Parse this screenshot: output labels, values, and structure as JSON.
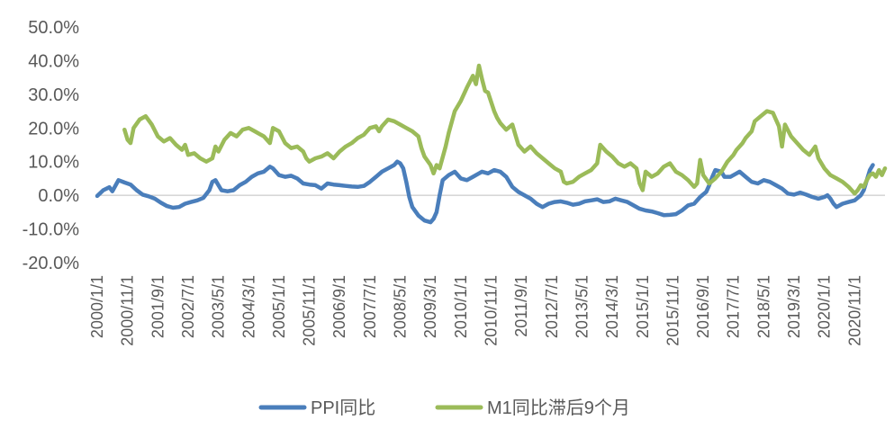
{
  "chart_data": {
    "type": "line",
    "title": "",
    "xlabel": "",
    "ylabel": "",
    "ylim": [
      -20,
      50
    ],
    "yticks": [
      "50.0%",
      "40.0%",
      "30.0%",
      "20.0%",
      "10.0%",
      "0.0%",
      "-10.0%",
      "-20.0%"
    ],
    "ytick_values": [
      50,
      40,
      30,
      20,
      10,
      0,
      -10,
      -20
    ],
    "x_categories": [
      "2000/1/1",
      "2000/11/1",
      "2001/9/1",
      "2002/7/1",
      "2003/5/1",
      "2004/3/1",
      "2005/1/1",
      "2005/11/1",
      "2006/9/1",
      "2007/7/1",
      "2008/5/1",
      "2009/3/1",
      "2010/1/1",
      "2010/11/1",
      "2011/9/1",
      "2012/7/1",
      "2013/5/1",
      "2014/3/1",
      "2015/1/1",
      "2015/11/1",
      "2016/9/1",
      "2017/7/1",
      "2018/5/1",
      "2019/3/1",
      "2020/1/1",
      "2020/11/1"
    ],
    "grid": false,
    "legend_position": "bottom",
    "series": [
      {
        "name": "PPI同比",
        "color": "#4A7EBB",
        "values": [
          [
            0,
            -0.2
          ],
          [
            2,
            1.5
          ],
          [
            4,
            2.4
          ],
          [
            5,
            1.2
          ],
          [
            7,
            4.5
          ],
          [
            9,
            3.8
          ],
          [
            11,
            3.2
          ],
          [
            13,
            1.5
          ],
          [
            15,
            0.2
          ],
          [
            17,
            -0.3
          ],
          [
            19,
            -1.0
          ],
          [
            21,
            -2.2
          ],
          [
            23,
            -3.2
          ],
          [
            25,
            -3.7
          ],
          [
            27,
            -3.5
          ],
          [
            29,
            -2.5
          ],
          [
            31,
            -2.0
          ],
          [
            33,
            -1.5
          ],
          [
            35,
            -0.8
          ],
          [
            37,
            1.5
          ],
          [
            38,
            4.0
          ],
          [
            39,
            4.5
          ],
          [
            40,
            3.0
          ],
          [
            41,
            1.5
          ],
          [
            43,
            1.2
          ],
          [
            45,
            1.5
          ],
          [
            47,
            3.0
          ],
          [
            49,
            4.0
          ],
          [
            51,
            5.5
          ],
          [
            53,
            6.5
          ],
          [
            55,
            7.0
          ],
          [
            57,
            8.5
          ],
          [
            58,
            8.0
          ],
          [
            60,
            6.0
          ],
          [
            62,
            5.5
          ],
          [
            64,
            5.8
          ],
          [
            66,
            5.0
          ],
          [
            68,
            3.5
          ],
          [
            70,
            3.2
          ],
          [
            72,
            3.0
          ],
          [
            74,
            2.0
          ],
          [
            76,
            3.5
          ],
          [
            78,
            3.2
          ],
          [
            80,
            3.0
          ],
          [
            82,
            2.8
          ],
          [
            84,
            2.6
          ],
          [
            86,
            2.5
          ],
          [
            88,
            2.8
          ],
          [
            90,
            4.0
          ],
          [
            92,
            5.5
          ],
          [
            94,
            7.0
          ],
          [
            96,
            8.0
          ],
          [
            98,
            9.0
          ],
          [
            99,
            10.0
          ],
          [
            100,
            9.5
          ],
          [
            101,
            8.0
          ],
          [
            102,
            4.0
          ],
          [
            103,
            -0.5
          ],
          [
            104,
            -3.5
          ],
          [
            106,
            -6.0
          ],
          [
            108,
            -7.5
          ],
          [
            110,
            -8.0
          ],
          [
            111,
            -7.0
          ],
          [
            112,
            -5.0
          ],
          [
            113,
            0.0
          ],
          [
            114,
            4.5
          ],
          [
            116,
            6.0
          ],
          [
            118,
            7.0
          ],
          [
            120,
            5.0
          ],
          [
            122,
            4.5
          ],
          [
            124,
            5.5
          ],
          [
            126,
            6.5
          ],
          [
            127,
            7.0
          ],
          [
            129,
            6.5
          ],
          [
            131,
            7.5
          ],
          [
            133,
            7.0
          ],
          [
            135,
            5.5
          ],
          [
            137,
            2.5
          ],
          [
            139,
            1.0
          ],
          [
            141,
            0.0
          ],
          [
            143,
            -1.0
          ],
          [
            145,
            -2.5
          ],
          [
            146,
            -3.0
          ],
          [
            147,
            -3.5
          ],
          [
            149,
            -2.5
          ],
          [
            151,
            -2.0
          ],
          [
            153,
            -1.8
          ],
          [
            155,
            -2.2
          ],
          [
            157,
            -2.8
          ],
          [
            159,
            -2.5
          ],
          [
            161,
            -1.8
          ],
          [
            163,
            -1.5
          ],
          [
            165,
            -1.2
          ],
          [
            167,
            -2.0
          ],
          [
            169,
            -1.8
          ],
          [
            171,
            -1.0
          ],
          [
            173,
            -1.5
          ],
          [
            175,
            -2.0
          ],
          [
            177,
            -3.0
          ],
          [
            179,
            -4.0
          ],
          [
            181,
            -4.5
          ],
          [
            183,
            -4.8
          ],
          [
            185,
            -5.3
          ],
          [
            187,
            -5.9
          ],
          [
            189,
            -5.8
          ],
          [
            191,
            -5.6
          ],
          [
            193,
            -4.5
          ],
          [
            195,
            -3.0
          ],
          [
            197,
            -2.5
          ],
          [
            199,
            -0.5
          ],
          [
            201,
            1.0
          ],
          [
            202,
            3.0
          ],
          [
            203,
            5.5
          ],
          [
            204,
            7.5
          ],
          [
            206,
            7.0
          ],
          [
            207,
            5.5
          ],
          [
            209,
            5.5
          ],
          [
            211,
            6.5
          ],
          [
            212,
            7.0
          ],
          [
            214,
            5.5
          ],
          [
            216,
            4.0
          ],
          [
            218,
            3.5
          ],
          [
            220,
            4.5
          ],
          [
            222,
            4.0
          ],
          [
            224,
            3.0
          ],
          [
            226,
            2.0
          ],
          [
            228,
            0.5
          ],
          [
            230,
            0.2
          ],
          [
            232,
            0.8
          ],
          [
            234,
            0.2
          ],
          [
            236,
            -0.5
          ],
          [
            238,
            -1.0
          ],
          [
            240,
            -0.5
          ],
          [
            241,
            0.0
          ],
          [
            242,
            -1.0
          ],
          [
            243,
            -2.5
          ],
          [
            244,
            -3.5
          ],
          [
            246,
            -2.5
          ],
          [
            248,
            -2.0
          ],
          [
            250,
            -1.5
          ],
          [
            252,
            0.0
          ],
          [
            253,
            1.5
          ],
          [
            254,
            4.5
          ],
          [
            255,
            7.5
          ],
          [
            256,
            9.0
          ]
        ]
      },
      {
        "name": "M1同比滞后9个月",
        "color": "#9BBB59",
        "values": [
          [
            9,
            19.5
          ],
          [
            10,
            16.5
          ],
          [
            11,
            15.5
          ],
          [
            12,
            20.0
          ],
          [
            14,
            22.5
          ],
          [
            16,
            23.5
          ],
          [
            18,
            21.0
          ],
          [
            20,
            17.5
          ],
          [
            22,
            16.0
          ],
          [
            24,
            17.0
          ],
          [
            26,
            15.0
          ],
          [
            28,
            13.5
          ],
          [
            29,
            15.0
          ],
          [
            30,
            12.0
          ],
          [
            32,
            12.5
          ],
          [
            34,
            11.0
          ],
          [
            36,
            10.0
          ],
          [
            38,
            11.0
          ],
          [
            39,
            14.5
          ],
          [
            40,
            13.0
          ],
          [
            42,
            16.5
          ],
          [
            44,
            18.5
          ],
          [
            46,
            17.5
          ],
          [
            48,
            19.5
          ],
          [
            50,
            20.0
          ],
          [
            52,
            19.0
          ],
          [
            54,
            18.0
          ],
          [
            55,
            17.5
          ],
          [
            57,
            15.5
          ],
          [
            58,
            20.0
          ],
          [
            60,
            19.0
          ],
          [
            62,
            15.5
          ],
          [
            64,
            14.0
          ],
          [
            66,
            14.5
          ],
          [
            68,
            13.0
          ],
          [
            69,
            11.0
          ],
          [
            70,
            10.0
          ],
          [
            72,
            11.0
          ],
          [
            74,
            11.5
          ],
          [
            76,
            12.5
          ],
          [
            78,
            11.0
          ],
          [
            80,
            13.0
          ],
          [
            82,
            14.5
          ],
          [
            84,
            15.5
          ],
          [
            86,
            17.0
          ],
          [
            88,
            18.0
          ],
          [
            90,
            20.0
          ],
          [
            92,
            20.5
          ],
          [
            93,
            19.0
          ],
          [
            94,
            20.5
          ],
          [
            96,
            22.5
          ],
          [
            98,
            22.0
          ],
          [
            100,
            21.0
          ],
          [
            102,
            20.0
          ],
          [
            104,
            19.0
          ],
          [
            106,
            17.5
          ],
          [
            107,
            14.0
          ],
          [
            108,
            11.5
          ],
          [
            110,
            9.0
          ],
          [
            111,
            6.5
          ],
          [
            112,
            9.0
          ],
          [
            113,
            8.0
          ],
          [
            115,
            14.5
          ],
          [
            116,
            18.5
          ],
          [
            118,
            25.0
          ],
          [
            120,
            28.0
          ],
          [
            122,
            32.0
          ],
          [
            124,
            35.5
          ],
          [
            125,
            33.0
          ],
          [
            126,
            38.5
          ],
          [
            127,
            34.5
          ],
          [
            128,
            31.0
          ],
          [
            129,
            30.5
          ],
          [
            131,
            25.0
          ],
          [
            132,
            23.0
          ],
          [
            133,
            21.5
          ],
          [
            135,
            19.5
          ],
          [
            137,
            21.0
          ],
          [
            138,
            18.0
          ],
          [
            139,
            15.0
          ],
          [
            141,
            13.0
          ],
          [
            143,
            14.5
          ],
          [
            145,
            12.5
          ],
          [
            147,
            11.0
          ],
          [
            149,
            9.5
          ],
          [
            151,
            8.0
          ],
          [
            153,
            7.0
          ],
          [
            154,
            4.0
          ],
          [
            155,
            3.5
          ],
          [
            157,
            4.0
          ],
          [
            159,
            5.5
          ],
          [
            161,
            6.5
          ],
          [
            163,
            7.5
          ],
          [
            165,
            9.5
          ],
          [
            166,
            15.0
          ],
          [
            168,
            13.0
          ],
          [
            170,
            11.5
          ],
          [
            172,
            9.5
          ],
          [
            174,
            8.5
          ],
          [
            176,
            9.5
          ],
          [
            178,
            8.0
          ],
          [
            179,
            3.5
          ],
          [
            180,
            1.5
          ],
          [
            181,
            7.0
          ],
          [
            183,
            5.5
          ],
          [
            185,
            6.5
          ],
          [
            187,
            8.5
          ],
          [
            189,
            9.5
          ],
          [
            191,
            7.0
          ],
          [
            193,
            6.0
          ],
          [
            195,
            4.5
          ],
          [
            197,
            2.5
          ],
          [
            198,
            3.5
          ],
          [
            199,
            10.5
          ],
          [
            200,
            6.0
          ],
          [
            202,
            3.5
          ],
          [
            204,
            5.0
          ],
          [
            206,
            7.0
          ],
          [
            208,
            10.0
          ],
          [
            210,
            12.0
          ],
          [
            211,
            13.5
          ],
          [
            213,
            15.5
          ],
          [
            214,
            17.0
          ],
          [
            216,
            19.0
          ],
          [
            217,
            22.0
          ],
          [
            219,
            23.5
          ],
          [
            221,
            25.0
          ],
          [
            223,
            24.5
          ],
          [
            224,
            22.5
          ],
          [
            225,
            20.5
          ],
          [
            226,
            14.5
          ],
          [
            227,
            21.0
          ],
          [
            229,
            17.5
          ],
          [
            231,
            15.5
          ],
          [
            233,
            13.5
          ],
          [
            235,
            12.0
          ],
          [
            237,
            14.5
          ],
          [
            238,
            11.0
          ],
          [
            240,
            8.0
          ],
          [
            242,
            6.0
          ],
          [
            244,
            5.0
          ],
          [
            246,
            4.0
          ],
          [
            248,
            2.5
          ],
          [
            249,
            1.5
          ],
          [
            250,
            0.5
          ],
          [
            251,
            1.5
          ],
          [
            252,
            3.0
          ],
          [
            253,
            2.5
          ],
          [
            254,
            4.5
          ],
          [
            255,
            6.0
          ],
          [
            256,
            6.5
          ],
          [
            257,
            5.5
          ],
          [
            258,
            7.5
          ],
          [
            259,
            6.0
          ],
          [
            260,
            8.0
          ]
        ]
      }
    ]
  }
}
